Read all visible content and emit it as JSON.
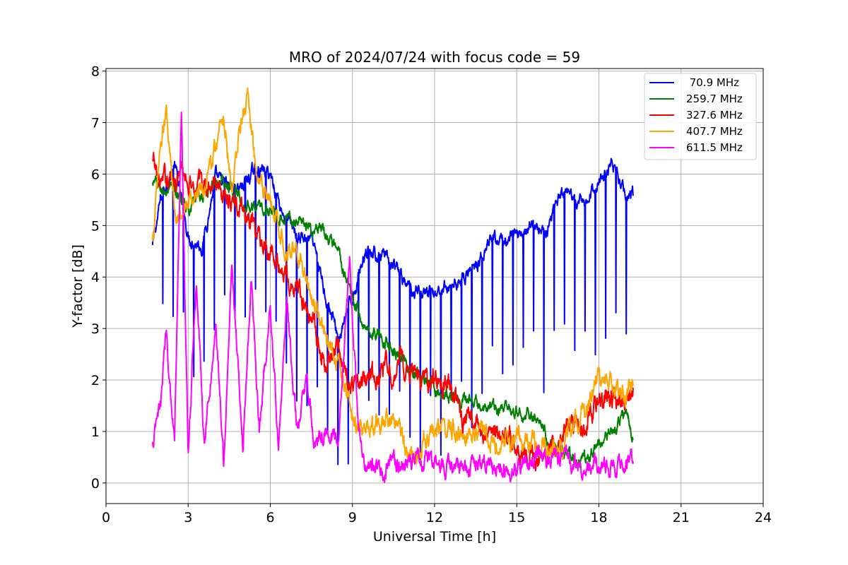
{
  "chart_data": {
    "type": "line",
    "title": "MRO of 2024/07/24 with focus code = 59",
    "xlabel": "Universal Time [h]",
    "ylabel": "Y-factor [dB]",
    "xlim": [
      0,
      24
    ],
    "ylim": [
      -0.4,
      8.05
    ],
    "x_ticks": [
      0,
      3,
      6,
      9,
      12,
      15,
      18,
      21,
      24
    ],
    "x_tick_labels": [
      "0",
      "3",
      "6",
      "9",
      "12",
      "15",
      "18",
      "21",
      "24"
    ],
    "y_ticks": [
      0,
      1,
      2,
      3,
      4,
      5,
      6,
      7,
      8
    ],
    "y_tick_labels": [
      "0",
      "1",
      "2",
      "3",
      "4",
      "5",
      "6",
      "7",
      "8"
    ],
    "grid": true,
    "legend_position": "top-right",
    "series": [
      {
        "name": " 70.9 MHz",
        "color": "#0000ff",
        "x": [
          1.7,
          2.0,
          2.5,
          3.0,
          3.5,
          4.0,
          4.5,
          5.0,
          5.5,
          6.0,
          6.5,
          7.0,
          7.5,
          8.0,
          8.5,
          9.0,
          9.5,
          10.0,
          10.5,
          11.0,
          11.5,
          12.0,
          12.5,
          13.0,
          13.5,
          14.0,
          14.5,
          15.0,
          15.5,
          16.0,
          16.5,
          17.0,
          17.5,
          18.0,
          18.5,
          19.0,
          19.25
        ],
        "y": [
          4.6,
          5.5,
          6.2,
          4.8,
          4.6,
          5.9,
          5.7,
          5.8,
          6.1,
          6.0,
          5.2,
          4.8,
          4.7,
          3.7,
          2.8,
          3.6,
          4.6,
          4.4,
          4.2,
          3.8,
          3.75,
          3.7,
          3.8,
          4.0,
          4.2,
          4.6,
          4.7,
          4.8,
          5.0,
          4.9,
          5.5,
          5.5,
          5.4,
          5.9,
          6.2,
          5.6,
          5.6
        ]
      },
      {
        "name": "259.7 MHz",
        "color": "#008000",
        "x": [
          1.7,
          2.0,
          2.5,
          3.0,
          3.5,
          4.0,
          4.5,
          5.0,
          5.5,
          6.0,
          6.5,
          7.0,
          7.5,
          8.0,
          8.5,
          9.0,
          9.5,
          10.0,
          10.5,
          11.0,
          11.5,
          12.0,
          12.5,
          13.0,
          13.5,
          14.0,
          14.5,
          15.0,
          15.5,
          16.0,
          16.5,
          17.0,
          17.5,
          18.0,
          18.5,
          19.0,
          19.25
        ],
        "y": [
          5.8,
          5.7,
          5.6,
          5.4,
          5.6,
          5.9,
          5.8,
          5.5,
          5.4,
          5.3,
          5.2,
          5.0,
          4.9,
          4.8,
          4.4,
          3.6,
          3.0,
          2.9,
          2.6,
          2.3,
          2.0,
          1.9,
          1.7,
          1.6,
          1.5,
          1.4,
          1.4,
          1.35,
          1.3,
          1.0,
          0.7,
          0.4,
          0.4,
          0.8,
          1.0,
          1.4,
          0.9
        ]
      },
      {
        "name": "327.6 MHz",
        "color": "#ff0000",
        "x": [
          1.7,
          2.0,
          2.5,
          3.0,
          3.5,
          4.0,
          4.5,
          5.0,
          5.5,
          6.0,
          6.5,
          7.0,
          7.5,
          8.0,
          8.5,
          9.0,
          9.5,
          10.0,
          10.5,
          11.0,
          11.5,
          12.0,
          12.5,
          13.0,
          13.5,
          14.0,
          14.5,
          15.0,
          15.5,
          16.0,
          16.5,
          17.0,
          17.5,
          18.0,
          18.5,
          19.0,
          19.25
        ],
        "y": [
          6.2,
          5.8,
          6.0,
          5.9,
          5.8,
          5.8,
          5.6,
          5.2,
          4.8,
          4.5,
          4.1,
          3.8,
          3.2,
          2.3,
          2.6,
          1.8,
          2.0,
          2.1,
          2.2,
          2.3,
          1.9,
          2.0,
          1.9,
          1.3,
          1.1,
          1.0,
          0.9,
          0.7,
          0.5,
          0.5,
          0.8,
          1.1,
          1.2,
          1.6,
          1.6,
          1.5,
          1.9
        ]
      },
      {
        "name": "407.7 MHz",
        "color": "#ffa500",
        "x": [
          1.7,
          2.0,
          2.2,
          2.5,
          3.0,
          3.5,
          4.0,
          4.3,
          4.6,
          5.0,
          5.2,
          5.5,
          6.0,
          6.5,
          7.0,
          7.5,
          8.0,
          8.5,
          9.0,
          9.5,
          10.0,
          10.5,
          11.0,
          11.5,
          12.0,
          12.5,
          13.0,
          13.5,
          14.0,
          14.5,
          15.0,
          15.5,
          16.0,
          16.5,
          17.0,
          17.5,
          18.0,
          18.5,
          19.0,
          19.25
        ],
        "y": [
          4.6,
          6.6,
          7.1,
          5.3,
          5.4,
          5.7,
          6.5,
          7.2,
          5.8,
          7.2,
          7.5,
          5.8,
          5.4,
          4.7,
          4.5,
          3.7,
          3.0,
          2.4,
          1.3,
          1.0,
          1.1,
          1.2,
          0.5,
          0.6,
          1.0,
          1.1,
          1.1,
          1.0,
          0.8,
          0.9,
          0.9,
          0.8,
          0.7,
          0.6,
          1.1,
          1.5,
          2.0,
          1.9,
          1.5,
          2.1
        ]
      },
      {
        "name": "611.5 MHz",
        "color": "#ff00ff",
        "x": [
          1.7,
          2.0,
          2.2,
          2.5,
          2.75,
          3.0,
          3.3,
          3.6,
          4.0,
          4.3,
          4.6,
          5.0,
          5.3,
          5.6,
          6.0,
          6.3,
          6.6,
          7.0,
          7.3,
          7.6,
          8.0,
          8.5,
          8.9,
          9.2,
          9.5,
          10.0,
          10.5,
          11.0,
          11.5,
          12.0,
          12.5,
          13.0,
          13.5,
          14.0,
          14.5,
          15.0,
          15.5,
          16.0,
          16.5,
          17.0,
          17.5,
          18.0,
          18.5,
          19.0,
          19.25
        ],
        "y": [
          0.7,
          1.5,
          3.0,
          0.8,
          7.3,
          0.6,
          4.0,
          0.6,
          3.0,
          0.4,
          4.3,
          0.7,
          4.0,
          1.0,
          3.5,
          0.8,
          3.6,
          0.9,
          2.0,
          0.8,
          1.0,
          0.8,
          4.3,
          1.1,
          0.4,
          0.3,
          0.35,
          0.4,
          0.5,
          0.35,
          0.3,
          0.3,
          0.35,
          0.35,
          0.3,
          0.35,
          0.4,
          0.6,
          0.5,
          0.35,
          0.3,
          0.3,
          0.3,
          0.35,
          0.5
        ]
      }
    ]
  }
}
